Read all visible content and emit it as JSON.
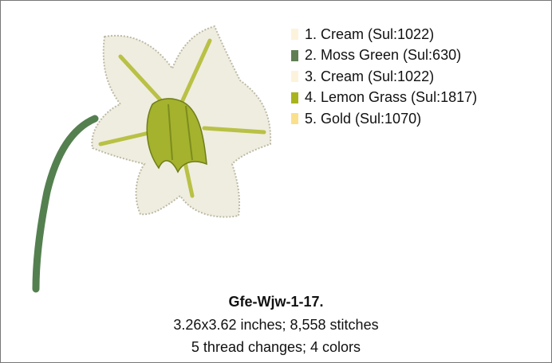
{
  "threads": [
    {
      "label": "1.  Cream (Sul:1022)",
      "color": "#fdf3dc"
    },
    {
      "label": "2.  Moss Green (Sul:630)",
      "color": "#5f7f52"
    },
    {
      "label": "3.  Cream (Sul:1022)",
      "color": "#fdf3dc"
    },
    {
      "label": "4.  Lemon Grass (Sul:1817)",
      "color": "#a9b41d"
    },
    {
      "label": "5.  Gold (Sul:1070)",
      "color": "#fbe08c"
    }
  ],
  "design": {
    "title": "Gfe-Wjw-1-17.",
    "lines": [
      "3.26x3.62 inches; 8,558 stitches",
      "5 thread changes; 4 colors"
    ]
  }
}
